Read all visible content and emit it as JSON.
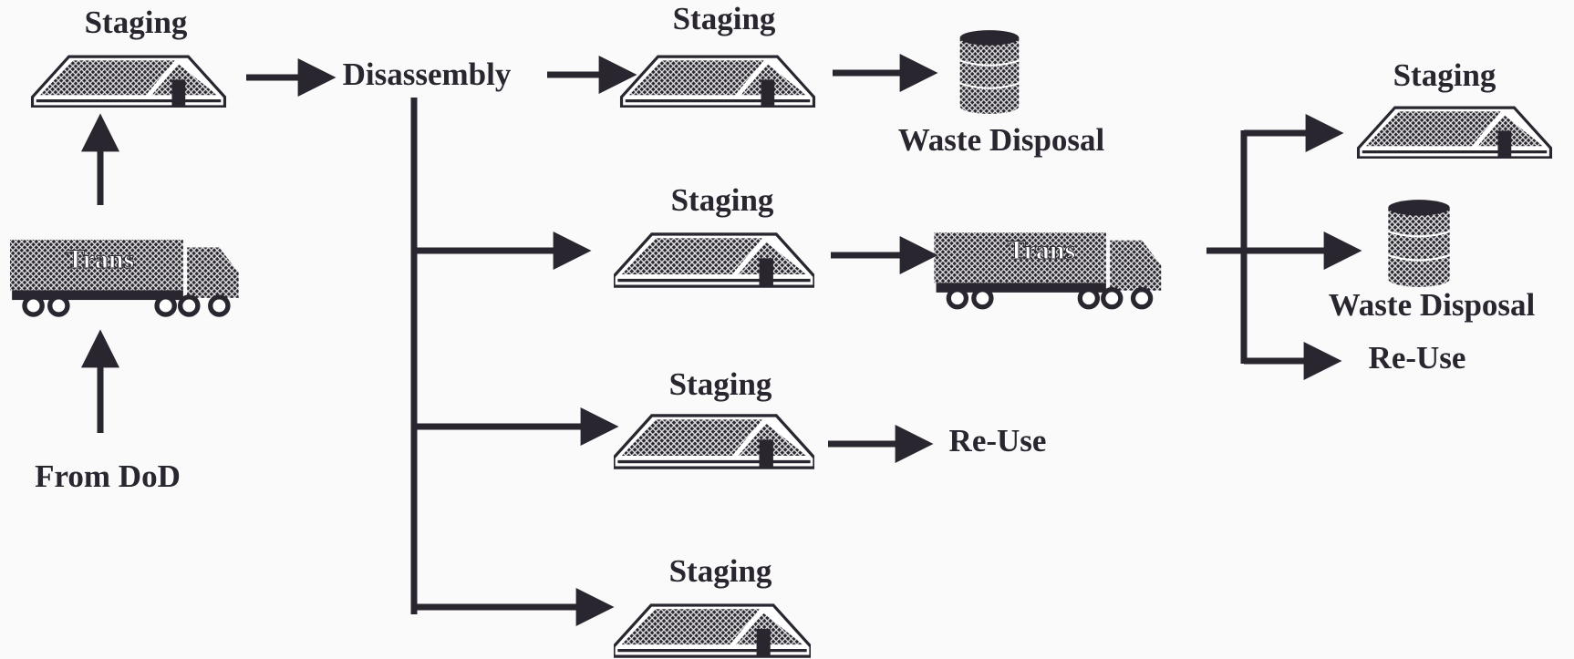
{
  "nodes": [
    {
      "label": "Staging"
    },
    {
      "label": "Disassembly"
    },
    {
      "label": "Staging"
    },
    {
      "label": "Waste Disposal"
    },
    {
      "label": "Staging"
    },
    {
      "label": "Trans"
    },
    {
      "label": "Staging"
    },
    {
      "label": "Waste Disposal"
    },
    {
      "label": "Re-Use"
    },
    {
      "label": "Staging"
    },
    {
      "label": "Re-Use"
    },
    {
      "label": "Staging"
    },
    {
      "label": "From DoD"
    },
    {
      "label": "Trans"
    }
  ]
}
